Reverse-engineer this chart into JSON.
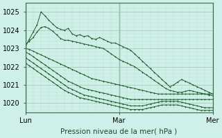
{
  "title": "",
  "xlabel": "Pression niveau de la mer( hPa )",
  "ylabel": "",
  "background_color": "#cff0e8",
  "grid_major_color": "#a8c8b8",
  "grid_minor_color": "#c0ddd0",
  "line_color": "#1a5c28",
  "ylim": [
    1019.5,
    1025.5
  ],
  "xlim": [
    0,
    48
  ],
  "yticks": [
    1020,
    1021,
    1022,
    1023,
    1024,
    1025
  ],
  "xtick_positions": [
    0,
    24,
    48
  ],
  "xtick_labels": [
    "Lun",
    "Mar",
    "Mer"
  ],
  "series": [
    [
      1023.1,
      1023.5,
      1023.9,
      1024.3,
      1025.0,
      1024.8,
      1024.55,
      1024.35,
      1024.15,
      1024.05,
      1024.0,
      1024.1,
      1023.8,
      1023.7,
      1023.75,
      1023.65,
      1023.7,
      1023.55,
      1023.5,
      1023.6,
      1023.5,
      1023.4,
      1023.3,
      1023.3,
      1023.2,
      1023.1,
      1023.0,
      1022.9,
      1022.7,
      1022.5,
      1022.3,
      1022.1,
      1021.9,
      1021.7,
      1021.5,
      1021.3,
      1021.1,
      1020.9,
      1021.0,
      1021.15,
      1021.3,
      1021.2,
      1021.1,
      1021.0,
      1020.9,
      1020.8,
      1020.7,
      1020.6,
      1020.5
    ],
    [
      1023.2,
      1023.4,
      1023.6,
      1023.9,
      1024.15,
      1024.2,
      1024.1,
      1023.95,
      1023.75,
      1023.55,
      1023.45,
      1023.45,
      1023.4,
      1023.35,
      1023.3,
      1023.25,
      1023.2,
      1023.15,
      1023.1,
      1023.05,
      1023.0,
      1022.85,
      1022.7,
      1022.55,
      1022.4,
      1022.3,
      1022.2,
      1022.1,
      1022.0,
      1021.85,
      1021.7,
      1021.55,
      1021.4,
      1021.25,
      1021.1,
      1020.95,
      1020.8,
      1020.7,
      1020.65,
      1020.6,
      1020.6,
      1020.65,
      1020.7,
      1020.65,
      1020.6,
      1020.55,
      1020.5,
      1020.45,
      1020.4
    ],
    [
      1023.0,
      1022.95,
      1022.85,
      1022.75,
      1022.65,
      1022.55,
      1022.45,
      1022.35,
      1022.25,
      1022.15,
      1022.05,
      1021.95,
      1021.85,
      1021.75,
      1021.65,
      1021.55,
      1021.45,
      1021.35,
      1021.3,
      1021.25,
      1021.2,
      1021.15,
      1021.1,
      1021.05,
      1021.0,
      1020.95,
      1020.9,
      1020.85,
      1020.8,
      1020.75,
      1020.7,
      1020.65,
      1020.6,
      1020.55,
      1020.5,
      1020.5,
      1020.5,
      1020.5,
      1020.5,
      1020.5,
      1020.5,
      1020.5,
      1020.5,
      1020.5,
      1020.5,
      1020.5,
      1020.5,
      1020.5,
      1020.5
    ],
    [
      1022.8,
      1022.7,
      1022.55,
      1022.4,
      1022.25,
      1022.1,
      1021.95,
      1021.8,
      1021.65,
      1021.5,
      1021.35,
      1021.2,
      1021.1,
      1021.0,
      1020.9,
      1020.8,
      1020.75,
      1020.7,
      1020.65,
      1020.6,
      1020.55,
      1020.5,
      1020.45,
      1020.4,
      1020.35,
      1020.3,
      1020.25,
      1020.2,
      1020.2,
      1020.2,
      1020.2,
      1020.2,
      1020.2,
      1020.2,
      1020.2,
      1020.2,
      1020.2,
      1020.2,
      1020.2,
      1020.2,
      1020.2,
      1020.2,
      1020.2,
      1020.2,
      1020.2,
      1020.2,
      1020.2,
      1020.2,
      1020.2
    ],
    [
      1022.5,
      1022.35,
      1022.2,
      1022.05,
      1021.9,
      1021.75,
      1021.6,
      1021.45,
      1021.3,
      1021.15,
      1021.0,
      1020.85,
      1020.75,
      1020.65,
      1020.55,
      1020.45,
      1020.4,
      1020.35,
      1020.3,
      1020.25,
      1020.2,
      1020.15,
      1020.1,
      1020.05,
      1020.0,
      1019.95,
      1019.9,
      1019.85,
      1019.85,
      1019.85,
      1019.85,
      1019.9,
      1019.95,
      1020.0,
      1020.05,
      1020.1,
      1020.1,
      1020.1,
      1020.1,
      1020.1,
      1020.05,
      1020.0,
      1019.95,
      1019.9,
      1019.85,
      1019.8,
      1019.75,
      1019.75,
      1019.75
    ],
    [
      1022.2,
      1022.05,
      1021.9,
      1021.75,
      1021.6,
      1021.45,
      1021.3,
      1021.15,
      1021.0,
      1020.85,
      1020.7,
      1020.6,
      1020.5,
      1020.4,
      1020.3,
      1020.25,
      1020.2,
      1020.15,
      1020.1,
      1020.05,
      1020.0,
      1019.95,
      1019.9,
      1019.85,
      1019.8,
      1019.75,
      1019.7,
      1019.65,
      1019.65,
      1019.65,
      1019.65,
      1019.7,
      1019.75,
      1019.8,
      1019.85,
      1019.9,
      1019.9,
      1019.9,
      1019.9,
      1019.9,
      1019.85,
      1019.8,
      1019.75,
      1019.7,
      1019.65,
      1019.6,
      1019.6,
      1019.6,
      1019.6
    ]
  ]
}
